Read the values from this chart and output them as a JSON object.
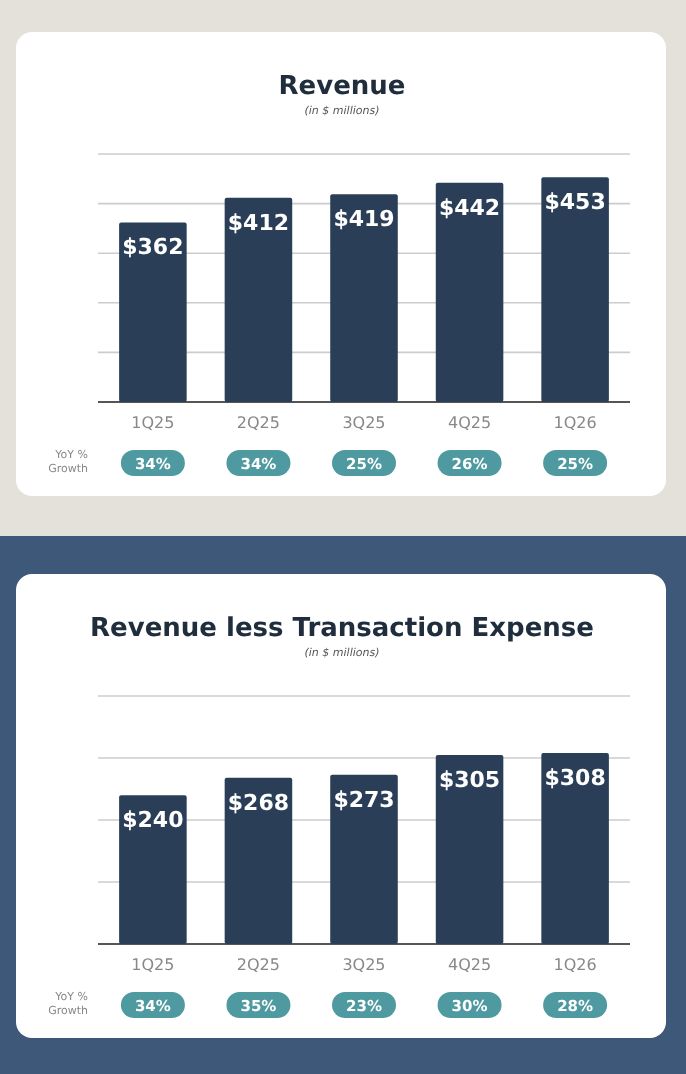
{
  "chart_data": [
    {
      "type": "bar",
      "title": "Revenue",
      "subtitle": "(in $ millions)",
      "categories": [
        "1Q25",
        "2Q25",
        "3Q25",
        "4Q25",
        "1Q26"
      ],
      "series": [
        {
          "color": "#2a3f57",
          "values": [
            362,
            412,
            419,
            442,
            453
          ],
          "value_labels": [
            "$362",
            "$412",
            "$419",
            "$442",
            "$453"
          ]
        }
      ],
      "ylim": [
        0,
        500
      ],
      "yticks": [
        {
          "value": 0,
          "label": null
        },
        {
          "value": 100,
          "label": null
        },
        {
          "value": 200,
          "label": null
        },
        {
          "value": 300,
          "label": null
        },
        {
          "value": 400,
          "label": null
        },
        {
          "value": 500,
          "label": null
        }
      ],
      "grid": "y",
      "tick_labels": "x",
      "annotations": [
        "YoY % Growth",
        "34%",
        "34%",
        "25%",
        "26%",
        "25%"
      ]
    },
    {
      "type": "bar",
      "title": "Revenue less Transaction Expense",
      "subtitle": "(in $ millions)",
      "categories": [
        "1Q25",
        "2Q25",
        "3Q25",
        "4Q25",
        "1Q26"
      ],
      "series": [
        {
          "color": "#2a3f57",
          "values": [
            240,
            268,
            273,
            305,
            308
          ],
          "value_labels": [
            "$240",
            "$268",
            "$273",
            "$305",
            "$308"
          ]
        }
      ],
      "ylim": [
        0,
        400
      ],
      "yticks": [
        {
          "value": 0,
          "label": null
        },
        {
          "value": 100,
          "label": null
        },
        {
          "value": 200,
          "label": null
        },
        {
          "value": 300,
          "label": null
        },
        {
          "value": 400,
          "label": null
        }
      ],
      "grid": "y",
      "tick_labels": "x",
      "annotations": [
        "YoY % Growth",
        "34%",
        "35%",
        "23%",
        "30%",
        "28%"
      ]
    }
  ]
}
